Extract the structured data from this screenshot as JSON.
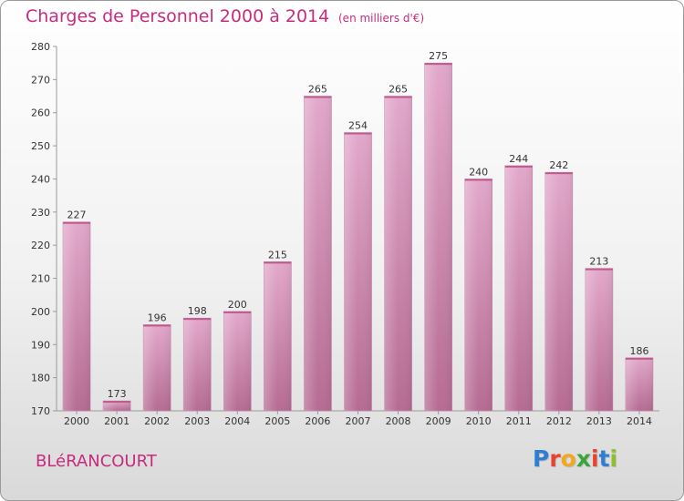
{
  "header": {
    "title": "Charges de Personnel 2000 à 2014",
    "subtitle": "(en milliers d'€)"
  },
  "footer": {
    "commune": "BLéRANCOURT",
    "logo": "Proxiti",
    "logo_letters": [
      {
        "char": "P",
        "color": "#2f7fd0"
      },
      {
        "char": "r",
        "color": "#e8432e"
      },
      {
        "char": "o",
        "color": "#f2a81d"
      },
      {
        "char": "x",
        "color": "#3aa63a"
      },
      {
        "char": "i",
        "color": "#e8432e"
      },
      {
        "char": "t",
        "color": "#2f7fd0"
      },
      {
        "char": "i",
        "color": "#8fbf2a"
      }
    ]
  },
  "colors": {
    "bar": "#dc9fc3",
    "bar_dark": "#b5688f",
    "accent": "#c72b7f"
  },
  "chart_data": {
    "type": "bar",
    "title": "Charges de Personnel 2000 à 2014",
    "subtitle": "(en milliers d'€)",
    "xlabel": "",
    "ylabel": "",
    "categories": [
      "2000",
      "2001",
      "2002",
      "2003",
      "2004",
      "2005",
      "2006",
      "2007",
      "2008",
      "2009",
      "2010",
      "2011",
      "2012",
      "2013",
      "2014"
    ],
    "values": [
      227,
      173,
      196,
      198,
      200,
      215,
      265,
      254,
      265,
      275,
      240,
      244,
      242,
      213,
      186
    ],
    "ylim": [
      170,
      280
    ],
    "yticks": [
      170,
      180,
      190,
      200,
      210,
      220,
      230,
      240,
      250,
      260,
      270,
      280
    ],
    "grid": false,
    "data_labels": true
  }
}
